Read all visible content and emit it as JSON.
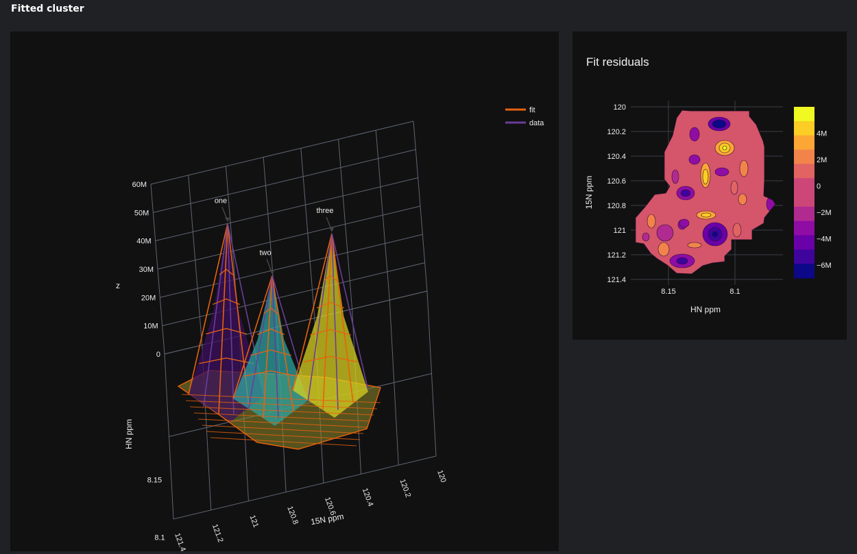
{
  "page": {
    "title": "Fitted cluster"
  },
  "chart_data": [
    {
      "type": "surface3d",
      "title": "",
      "xlabel": "15N ppm",
      "ylabel": "HN ppm",
      "zlabel": "z",
      "x_ticks": [
        "121.4",
        "121.2",
        "121",
        "120.8",
        "120.6",
        "120.4",
        "120.2",
        "120"
      ],
      "y_ticks": [
        "8.15",
        "8.1"
      ],
      "z_ticks": [
        "0",
        "10M",
        "20M",
        "30M",
        "40M",
        "50M",
        "60M"
      ],
      "zlim": [
        0,
        60000000
      ],
      "legend": {
        "placement": "top-right",
        "entries": [
          {
            "name": "fit",
            "color": "#e8620e"
          },
          {
            "name": "data",
            "color": "#6a3d9a"
          }
        ]
      },
      "peaks": [
        {
          "label": "one",
          "height": 58000000,
          "color": "#3b0f5e"
        },
        {
          "label": "two",
          "height": 41000000,
          "color": "#2ea3a0"
        },
        {
          "label": "three",
          "height": 53000000,
          "color": "#d8d020"
        }
      ],
      "series": [
        {
          "name": "fit"
        },
        {
          "name": "data"
        }
      ]
    },
    {
      "type": "heatmap",
      "title": "Fit residuals",
      "xlabel": "HN ppm",
      "ylabel": "15N ppm",
      "x_ticks": [
        "8.15",
        "8.1"
      ],
      "y_ticks": [
        "120",
        "120.2",
        "120.4",
        "120.6",
        "120.8",
        "121",
        "121.2",
        "121.4"
      ],
      "xlim": [
        8.175,
        8.085
      ],
      "ylim": [
        121.45,
        119.95
      ],
      "colorbar": {
        "ticks": [
          "4M",
          "2M",
          "0",
          "−2M",
          "−4M",
          "−6M"
        ],
        "range": [
          -7000000,
          6000000
        ]
      }
    }
  ]
}
